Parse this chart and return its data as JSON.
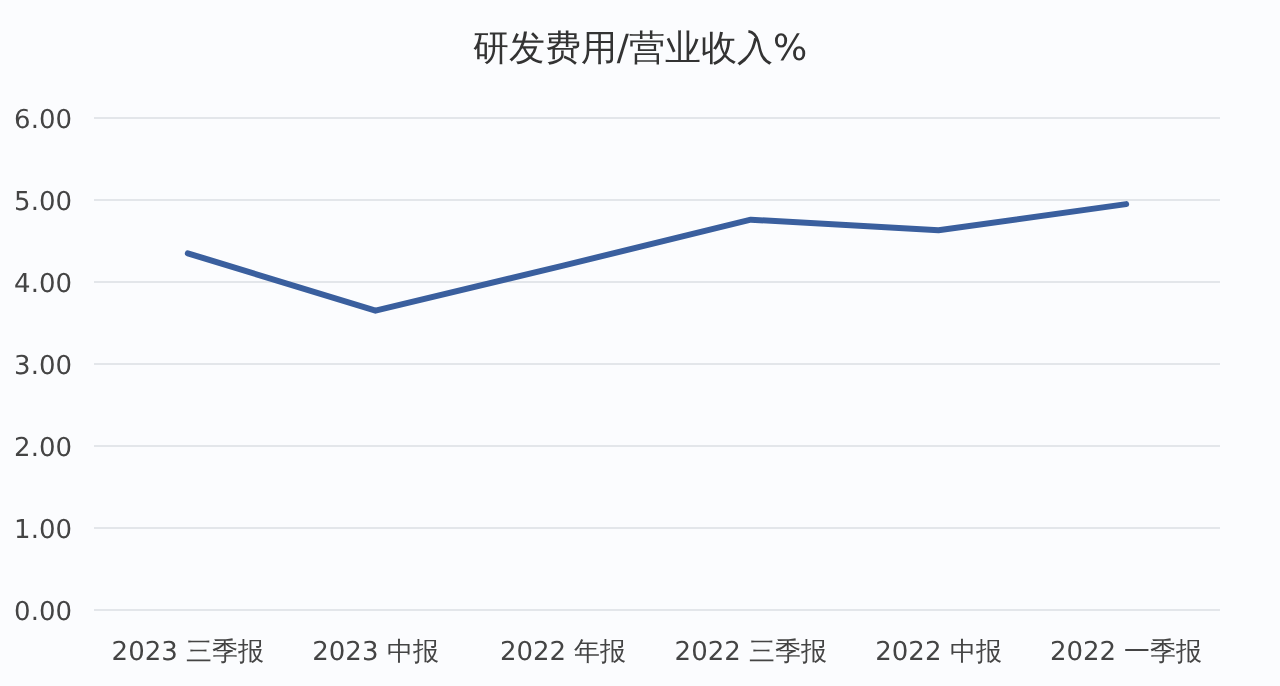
{
  "chart_data": {
    "type": "line",
    "title": "研发费用/营业收入%",
    "categories": [
      "2023 三季报",
      "2023 中报",
      "2022 年报",
      "2022 三季报",
      "2022 中报",
      "2022 一季报"
    ],
    "series": [
      {
        "color": "#3a5f9e",
        "values": [
          4.35,
          3.65,
          4.2,
          4.76,
          4.63,
          4.95
        ]
      }
    ],
    "ylim": [
      0,
      6
    ],
    "yticks": [
      {
        "value": 0,
        "label": "0.00"
      },
      {
        "value": 1,
        "label": "1.00"
      },
      {
        "value": 2,
        "label": "2.00"
      },
      {
        "value": 3,
        "label": "3.00"
      },
      {
        "value": 4,
        "label": "4.00"
      },
      {
        "value": 5,
        "label": "5.00"
      },
      {
        "value": 6,
        "label": "6.00"
      }
    ],
    "grid": "y",
    "marker": "none",
    "line_style": "solid"
  }
}
